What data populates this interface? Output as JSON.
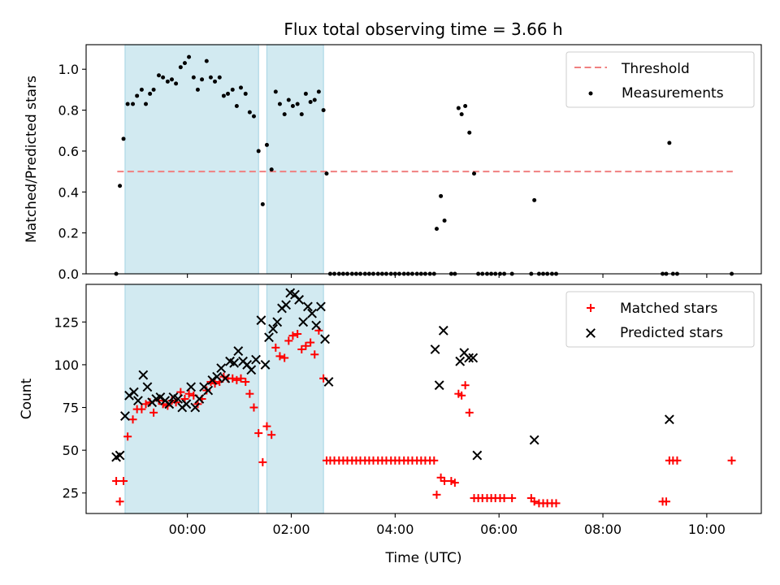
{
  "title": "Flux total observing time = 3.66 h",
  "chart_data": [
    {
      "type": "scatter",
      "ylabel": "Matched/Predicted stars",
      "xlabel": "",
      "xlim": [
        -1.95,
        11.05
      ],
      "ylim": [
        0,
        1.12
      ],
      "yticks": [
        0.0,
        0.2,
        0.4,
        0.6,
        0.8,
        1.0
      ],
      "ytick_labels": [
        "0.0",
        "0.2",
        "0.4",
        "0.6",
        "0.8",
        "1.0"
      ],
      "shaded_spans": [
        [
          -1.2,
          1.37
        ],
        [
          1.53,
          2.62
        ]
      ],
      "threshold": {
        "name": "Threshold",
        "y": 0.5,
        "x_range": [
          -1.35,
          10.5
        ],
        "color": "#f08080"
      },
      "legend": {
        "position": "top-right"
      },
      "series": [
        {
          "name": "Measurements",
          "marker": "dot",
          "color": "#000000",
          "x": [
            -1.37,
            -1.3,
            -1.23,
            -1.15,
            -1.05,
            -0.97,
            -0.88,
            -0.8,
            -0.72,
            -0.65,
            -0.55,
            -0.47,
            -0.38,
            -0.3,
            -0.22,
            -0.13,
            -0.05,
            0.03,
            0.12,
            0.2,
            0.28,
            0.37,
            0.45,
            0.53,
            0.62,
            0.7,
            0.78,
            0.87,
            0.95,
            1.03,
            1.12,
            1.2,
            1.28,
            1.37,
            1.45,
            1.53,
            1.62,
            1.7,
            1.78,
            1.87,
            1.95,
            2.03,
            2.12,
            2.2,
            2.28,
            2.37,
            2.45,
            2.53,
            2.62,
            2.68,
            2.75,
            2.83,
            2.92,
            3.0,
            3.08,
            3.17,
            3.25,
            3.33,
            3.42,
            3.5,
            3.58,
            3.67,
            3.75,
            3.83,
            3.92,
            4.0,
            4.08,
            4.17,
            4.25,
            4.33,
            4.42,
            4.5,
            4.58,
            4.67,
            4.75,
            4.8,
            4.88,
            4.95,
            5.08,
            5.15,
            5.22,
            5.28,
            5.35,
            5.43,
            5.52,
            5.6,
            5.68,
            5.77,
            5.85,
            5.93,
            6.02,
            6.1,
            6.25,
            6.62,
            6.68,
            6.77,
            6.85,
            6.93,
            7.02,
            7.1,
            9.15,
            9.22,
            9.28,
            9.35,
            9.43,
            10.48
          ],
          "y": [
            0.0,
            0.43,
            0.66,
            0.83,
            0.83,
            0.87,
            0.9,
            0.83,
            0.88,
            0.9,
            0.97,
            0.96,
            0.94,
            0.95,
            0.93,
            1.01,
            1.03,
            1.06,
            0.96,
            0.9,
            0.95,
            1.04,
            0.96,
            0.94,
            0.96,
            0.87,
            0.88,
            0.9,
            0.82,
            0.91,
            0.88,
            0.79,
            0.77,
            0.6,
            0.34,
            0.63,
            0.51,
            0.89,
            0.83,
            0.78,
            0.85,
            0.82,
            0.83,
            0.78,
            0.88,
            0.84,
            0.85,
            0.89,
            0.8,
            0.49,
            0.0,
            0.0,
            0.0,
            0.0,
            0.0,
            0.0,
            0.0,
            0.0,
            0.0,
            0.0,
            0.0,
            0.0,
            0.0,
            0.0,
            0.0,
            0.0,
            0.0,
            0.0,
            0.0,
            0.0,
            0.0,
            0.0,
            0.0,
            0.0,
            0.0,
            0.22,
            0.38,
            0.26,
            0.0,
            0.0,
            0.81,
            0.78,
            0.82,
            0.69,
            0.49,
            0.0,
            0.0,
            0.0,
            0.0,
            0.0,
            0.0,
            0.0,
            0.0,
            0.0,
            0.36,
            0.0,
            0.0,
            0.0,
            0.0,
            0.0,
            0.0,
            0.0,
            0.64,
            0.0,
            0.0,
            0.0
          ]
        }
      ]
    },
    {
      "type": "scatter",
      "ylabel": "Count",
      "xlabel": "Time (UTC)",
      "xlim": [
        -1.95,
        11.05
      ],
      "ylim": [
        13,
        147
      ],
      "yticks": [
        25,
        50,
        75,
        100,
        125
      ],
      "ytick_labels": [
        "25",
        "50",
        "75",
        "100",
        "125"
      ],
      "xticks": [
        0,
        2,
        4,
        6,
        8,
        10
      ],
      "xtick_labels": [
        "00:00",
        "02:00",
        "04:00",
        "06:00",
        "08:00",
        "10:00"
      ],
      "shaded_spans": [
        [
          -1.2,
          1.37
        ],
        [
          1.53,
          2.62
        ]
      ],
      "legend": {
        "position": "top-right"
      },
      "series": [
        {
          "name": "Matched stars",
          "marker": "plus",
          "color": "#ff0000",
          "x": [
            -1.37,
            -1.3,
            -1.23,
            -1.15,
            -1.05,
            -0.97,
            -0.88,
            -0.8,
            -0.72,
            -0.65,
            -0.55,
            -0.47,
            -0.38,
            -0.3,
            -0.22,
            -0.13,
            -0.05,
            0.03,
            0.12,
            0.2,
            0.28,
            0.37,
            0.45,
            0.53,
            0.62,
            0.7,
            0.78,
            0.87,
            0.95,
            1.03,
            1.12,
            1.2,
            1.28,
            1.37,
            1.45,
            1.53,
            1.62,
            1.7,
            1.78,
            1.87,
            1.95,
            2.03,
            2.12,
            2.2,
            2.28,
            2.37,
            2.45,
            2.53,
            2.62,
            2.68,
            2.75,
            2.83,
            2.92,
            3.0,
            3.08,
            3.17,
            3.25,
            3.33,
            3.42,
            3.5,
            3.58,
            3.67,
            3.75,
            3.83,
            3.92,
            4.0,
            4.08,
            4.17,
            4.25,
            4.33,
            4.42,
            4.5,
            4.58,
            4.67,
            4.75,
            4.8,
            4.88,
            4.95,
            5.08,
            5.15,
            5.22,
            5.28,
            5.35,
            5.43,
            5.52,
            5.6,
            5.68,
            5.77,
            5.85,
            5.93,
            6.02,
            6.1,
            6.25,
            6.62,
            6.68,
            6.77,
            6.85,
            6.93,
            7.02,
            7.1,
            9.15,
            9.22,
            9.28,
            9.35,
            9.43,
            10.48
          ],
          "y": [
            32,
            20,
            32,
            58,
            68,
            74,
            74,
            77,
            78,
            72,
            79,
            77,
            76,
            79,
            78,
            84,
            80,
            83,
            82,
            77,
            80,
            85,
            90,
            89,
            90,
            93,
            92,
            92,
            91,
            92,
            90,
            83,
            75,
            60,
            43,
            64,
            59,
            110,
            105,
            104,
            114,
            117,
            118,
            109,
            111,
            113,
            106,
            120,
            92,
            44,
            44,
            44,
            44,
            44,
            44,
            44,
            44,
            44,
            44,
            44,
            44,
            44,
            44,
            44,
            44,
            44,
            44,
            44,
            44,
            44,
            44,
            44,
            44,
            44,
            44,
            24,
            34,
            32,
            32,
            31,
            83,
            82,
            88,
            72,
            22,
            22,
            22,
            22,
            22,
            22,
            22,
            22,
            22,
            22,
            20,
            19,
            19,
            19,
            19,
            19,
            20,
            20,
            44,
            44,
            44,
            44
          ]
        },
        {
          "name": "Predicted stars",
          "marker": "x",
          "color": "#000000",
          "x": [
            -1.37,
            -1.3,
            -1.2,
            -1.12,
            -1.03,
            -0.95,
            -0.85,
            -0.77,
            -0.68,
            -0.6,
            -0.52,
            -0.43,
            -0.35,
            -0.27,
            -0.18,
            -0.1,
            -0.02,
            0.07,
            0.15,
            0.23,
            0.32,
            0.4,
            0.48,
            0.57,
            0.65,
            0.73,
            0.82,
            0.9,
            0.98,
            1.07,
            1.15,
            1.23,
            1.32,
            1.42,
            1.5,
            1.57,
            1.65,
            1.73,
            1.82,
            1.9,
            1.98,
            2.07,
            2.15,
            2.23,
            2.32,
            2.4,
            2.48,
            2.57,
            2.65,
            2.72,
            4.77,
            4.85,
            4.93,
            5.25,
            5.33,
            5.42,
            5.5,
            5.58,
            6.68,
            9.28
          ],
          "y": [
            46,
            47,
            70,
            82,
            84,
            79,
            94,
            87,
            78,
            80,
            81,
            79,
            77,
            81,
            80,
            75,
            77,
            87,
            75,
            80,
            87,
            85,
            91,
            93,
            98,
            92,
            102,
            101,
            108,
            102,
            100,
            97,
            103,
            126,
            100,
            116,
            121,
            125,
            133,
            135,
            142,
            141,
            138,
            125,
            134,
            130,
            123,
            134,
            115,
            90,
            109,
            88,
            120,
            102,
            107,
            104,
            104,
            47,
            56,
            68
          ]
        }
      ]
    }
  ]
}
